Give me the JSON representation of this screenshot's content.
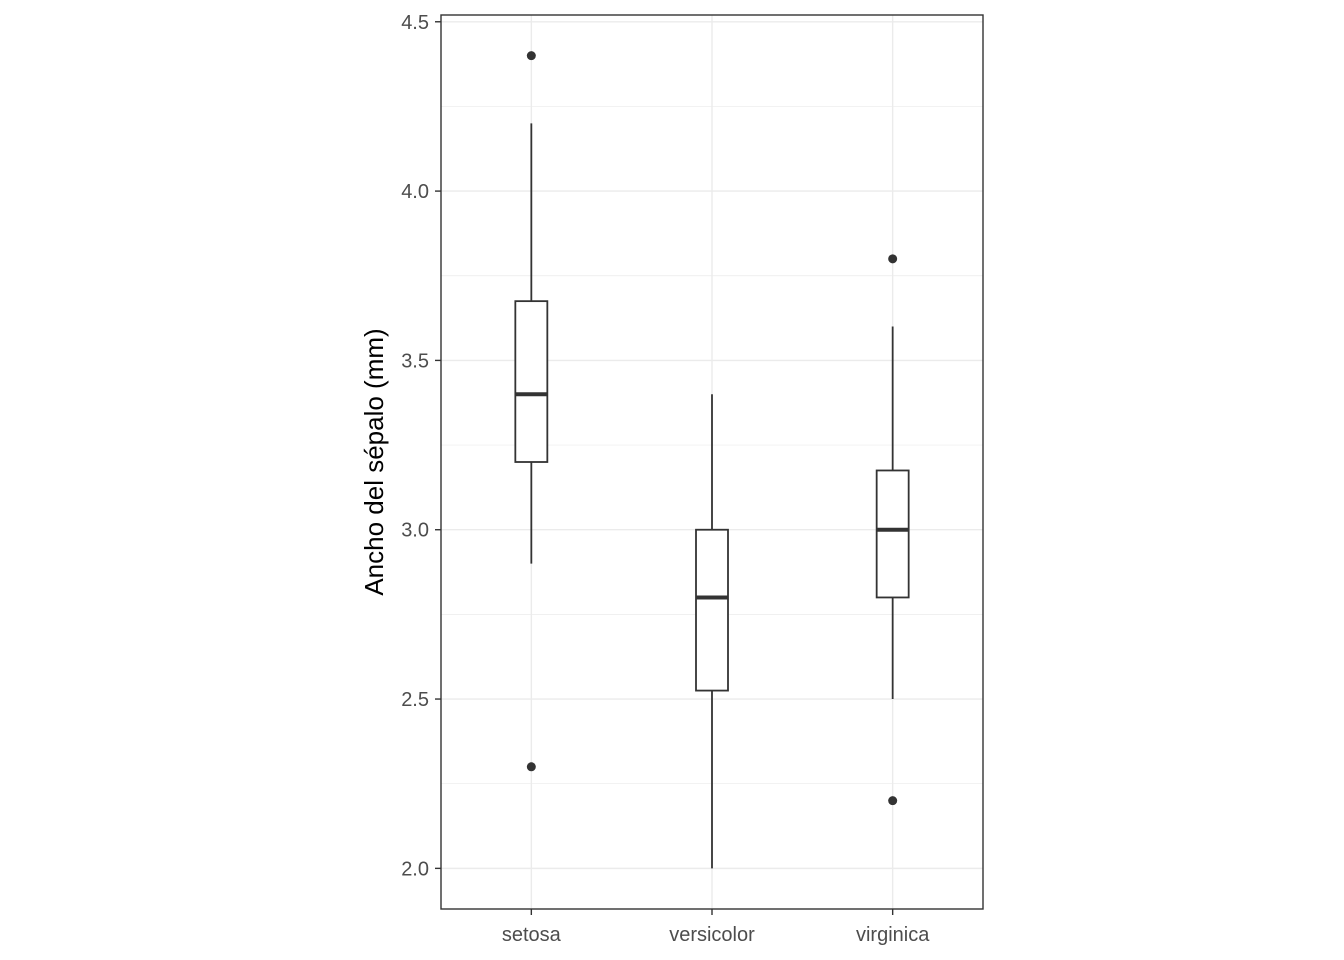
{
  "chart_data": {
    "type": "boxplot",
    "title": "",
    "xlabel": "",
    "ylabel": "Ancho del sépalo (mm)",
    "ylim": [
      1.88,
      4.52
    ],
    "y_ticks": [
      2.0,
      2.5,
      3.0,
      3.5,
      4.0,
      4.5
    ],
    "y_tick_labels": [
      "2.0",
      "2.5",
      "3.0",
      "3.5",
      "4.0",
      "4.5"
    ],
    "y_minor_ticks": [
      2.25,
      2.75,
      3.25,
      3.75,
      4.25
    ],
    "grid": true,
    "legend": "none",
    "categories": [
      "setosa",
      "versicolor",
      "virginica"
    ],
    "boxes": [
      {
        "category": "setosa",
        "whisker_low": 2.9,
        "q1": 3.2,
        "median": 3.4,
        "q3": 3.675,
        "whisker_high": 4.2,
        "outliers": [
          4.4,
          2.3
        ]
      },
      {
        "category": "versicolor",
        "whisker_low": 2.0,
        "q1": 2.525,
        "median": 2.8,
        "q3": 3.0,
        "whisker_high": 3.4,
        "outliers": []
      },
      {
        "category": "virginica",
        "whisker_low": 2.5,
        "q1": 2.8,
        "median": 3.0,
        "q3": 3.175,
        "whisker_high": 3.6,
        "outliers": [
          3.8,
          2.2
        ]
      }
    ],
    "colors": {
      "box_fill": "#ffffff",
      "box_line": "#333333",
      "grid": "#ebebeb",
      "panel_border": "#333333"
    }
  }
}
